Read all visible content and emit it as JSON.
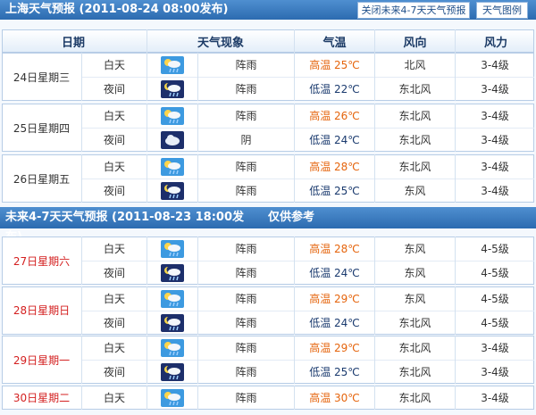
{
  "header": {
    "title": "上海天气预报 (2011-08-24 08:00发布)",
    "buttons": [
      "关闭未来4-7天天气预报",
      "天气图例"
    ]
  },
  "columns": [
    "日期",
    "天气现象",
    "气温",
    "风向",
    "风力"
  ],
  "sections": [
    {
      "days": [
        {
          "date": "24日星期三",
          "rows": [
            {
              "period": "白天",
              "desc": "阵雨",
              "temp": "高温 25℃",
              "wind": "北风",
              "force": "3-4级"
            },
            {
              "period": "夜间",
              "desc": "阵雨",
              "temp": "低温 22℃",
              "wind": "东北风",
              "force": "3-4级"
            }
          ]
        },
        {
          "date": "25日星期四",
          "rows": [
            {
              "period": "白天",
              "desc": "阵雨",
              "temp": "高温 26℃",
              "wind": "东北风",
              "force": "3-4级"
            },
            {
              "period": "夜间",
              "desc": "阴",
              "temp": "低温 24℃",
              "wind": "东北风",
              "force": "3-4级"
            }
          ]
        },
        {
          "date": "26日星期五",
          "rows": [
            {
              "period": "白天",
              "desc": "阵雨",
              "temp": "高温 28℃",
              "wind": "东北风",
              "force": "3-4级"
            },
            {
              "period": "夜间",
              "desc": "阵雨",
              "temp": "低温 25℃",
              "wind": "东风",
              "force": "3-4级"
            }
          ]
        }
      ]
    },
    {
      "title": "未来4-7天天气预报 (2011-08-23 18:00发布)",
      "note": "仅供参考",
      "days": [
        {
          "date": "27日星期六",
          "rows": [
            {
              "period": "白天",
              "desc": "阵雨",
              "temp": "高温 28℃",
              "wind": "东风",
              "force": "4-5级"
            },
            {
              "period": "夜间",
              "desc": "阵雨",
              "temp": "低温 24℃",
              "wind": "东风",
              "force": "4-5级"
            }
          ]
        },
        {
          "date": "28日星期日",
          "rows": [
            {
              "period": "白天",
              "desc": "阵雨",
              "temp": "高温 29℃",
              "wind": "东风",
              "force": "4-5级"
            },
            {
              "period": "夜间",
              "desc": "阵雨",
              "temp": "低温 24℃",
              "wind": "东北风",
              "force": "4-5级"
            }
          ]
        },
        {
          "date": "29日星期一",
          "rows": [
            {
              "period": "白天",
              "desc": "阵雨",
              "temp": "高温 29℃",
              "wind": "东北风",
              "force": "3-4级"
            },
            {
              "period": "夜间",
              "desc": "阵雨",
              "temp": "低温 25℃",
              "wind": "东北风",
              "force": "3-4级"
            }
          ]
        },
        {
          "date": "30日星期二",
          "rows": [
            {
              "period": "白天",
              "desc": "阵雨",
              "temp": "高温 30℃",
              "wind": "东北风",
              "force": "3-4级"
            }
          ]
        }
      ]
    }
  ]
}
